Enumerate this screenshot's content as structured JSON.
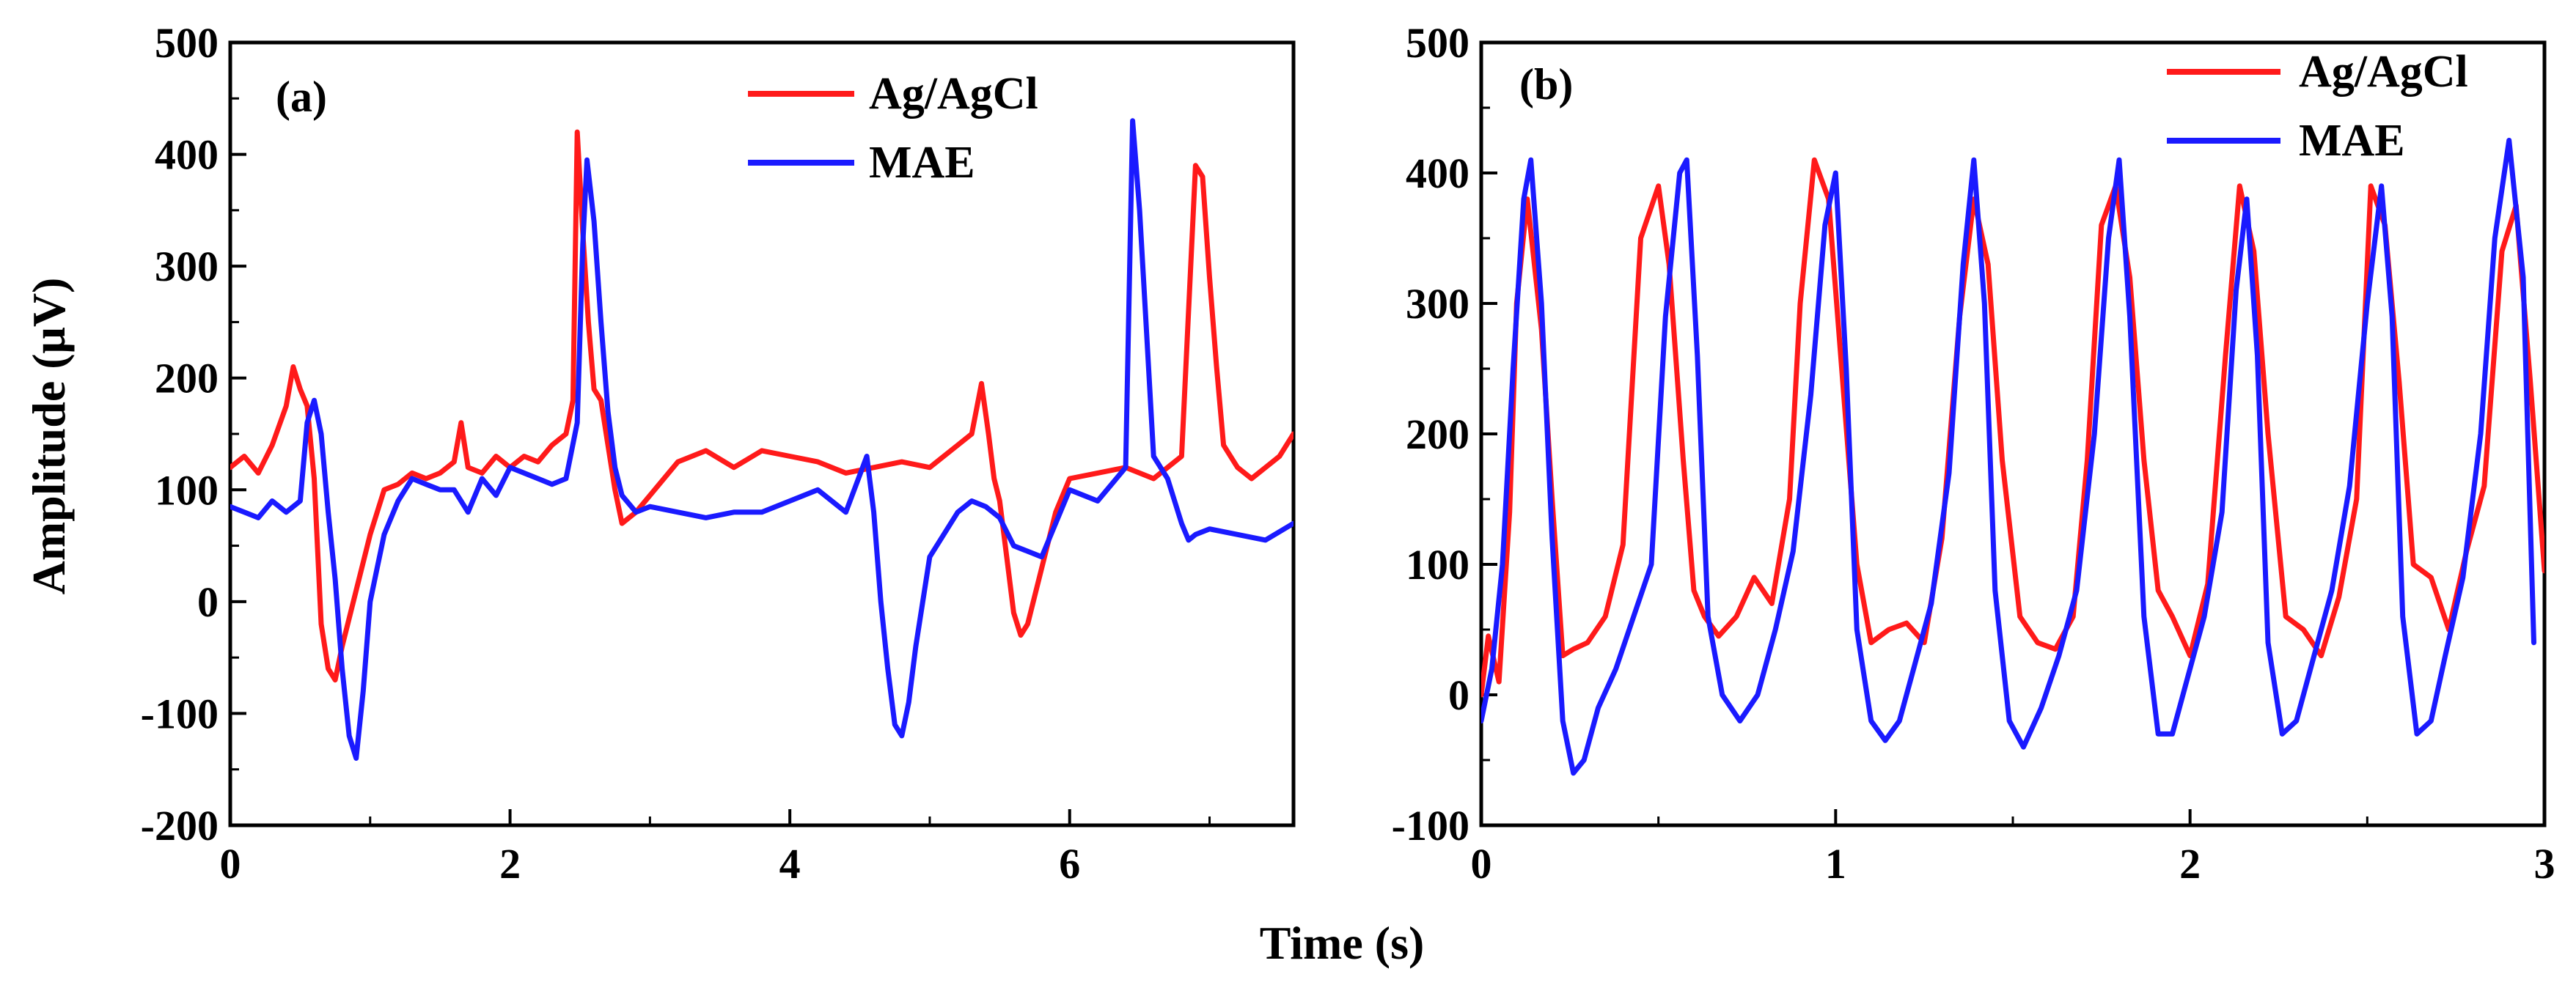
{
  "figure": {
    "shared_xlabel": "Time (s)",
    "shared_ylabel": "Amplitude (μV)"
  },
  "chart_data": [
    {
      "type": "line",
      "panel_label": "(a)",
      "xlabel": "Time (s)",
      "ylabel": "Amplitude (μV)",
      "xlim": [
        0,
        7.6
      ],
      "ylim": [
        -200,
        500
      ],
      "x_ticks": [
        "0",
        "2",
        "4",
        "6"
      ],
      "y_ticks": [
        "-200",
        "-100",
        "0",
        "100",
        "200",
        "300",
        "400",
        "500"
      ],
      "grid": false,
      "legend_position": "top-right",
      "series": [
        {
          "name": "Ag/AgCl",
          "color": "#ff1a1a",
          "x": [
            0,
            0.1,
            0.2,
            0.3,
            0.4,
            0.45,
            0.5,
            0.55,
            0.6,
            0.65,
            0.7,
            0.75,
            0.8,
            0.9,
            1.0,
            1.1,
            1.2,
            1.3,
            1.4,
            1.5,
            1.6,
            1.65,
            1.7,
            1.8,
            1.9,
            2.0,
            2.1,
            2.2,
            2.3,
            2.4,
            2.45,
            2.48,
            2.52,
            2.56,
            2.6,
            2.65,
            2.7,
            2.75,
            2.8,
            2.9,
            3.0,
            3.2,
            3.4,
            3.6,
            3.8,
            4.0,
            4.2,
            4.4,
            4.6,
            4.8,
            5.0,
            5.2,
            5.3,
            5.37,
            5.42,
            5.46,
            5.5,
            5.55,
            5.6,
            5.65,
            5.7,
            5.8,
            5.9,
            6.0,
            6.2,
            6.4,
            6.6,
            6.8,
            6.85,
            6.9,
            6.95,
            7.0,
            7.05,
            7.1,
            7.2,
            7.3,
            7.4,
            7.5,
            7.6
          ],
          "values": [
            120,
            130,
            115,
            140,
            175,
            210,
            190,
            175,
            110,
            -20,
            -60,
            -70,
            -40,
            10,
            60,
            100,
            105,
            115,
            110,
            115,
            125,
            160,
            120,
            115,
            130,
            120,
            130,
            125,
            140,
            150,
            180,
            420,
            330,
            250,
            190,
            180,
            140,
            100,
            70,
            80,
            95,
            125,
            135,
            120,
            135,
            130,
            125,
            115,
            120,
            125,
            120,
            140,
            150,
            195,
            150,
            110,
            90,
            40,
            -10,
            -30,
            -20,
            30,
            80,
            110,
            115,
            120,
            110,
            130,
            260,
            390,
            380,
            290,
            210,
            140,
            120,
            110,
            120,
            130,
            150
          ]
        },
        {
          "name": "MAE",
          "color": "#1a1aff",
          "x": [
            0,
            0.1,
            0.2,
            0.3,
            0.4,
            0.5,
            0.55,
            0.6,
            0.65,
            0.7,
            0.75,
            0.8,
            0.85,
            0.9,
            0.95,
            1.0,
            1.05,
            1.1,
            1.2,
            1.3,
            1.4,
            1.5,
            1.6,
            1.7,
            1.8,
            1.9,
            2.0,
            2.1,
            2.2,
            2.3,
            2.4,
            2.48,
            2.52,
            2.55,
            2.6,
            2.65,
            2.7,
            2.75,
            2.8,
            2.9,
            3.0,
            3.2,
            3.4,
            3.6,
            3.8,
            4.0,
            4.2,
            4.4,
            4.55,
            4.6,
            4.65,
            4.7,
            4.75,
            4.8,
            4.85,
            4.9,
            5.0,
            5.1,
            5.2,
            5.3,
            5.4,
            5.5,
            5.6,
            5.8,
            6.0,
            6.2,
            6.4,
            6.45,
            6.5,
            6.55,
            6.6,
            6.7,
            6.8,
            6.85,
            6.9,
            7.0,
            7.2,
            7.4,
            7.6
          ],
          "values": [
            85,
            80,
            75,
            90,
            80,
            90,
            160,
            180,
            150,
            80,
            20,
            -60,
            -120,
            -140,
            -80,
            0,
            30,
            60,
            90,
            110,
            105,
            100,
            100,
            80,
            110,
            95,
            120,
            115,
            110,
            105,
            110,
            160,
            320,
            395,
            340,
            250,
            170,
            120,
            95,
            80,
            85,
            80,
            75,
            80,
            80,
            90,
            100,
            80,
            130,
            80,
            0,
            -60,
            -110,
            -120,
            -90,
            -40,
            40,
            60,
            80,
            90,
            85,
            75,
            50,
            40,
            100,
            90,
            120,
            430,
            350,
            240,
            130,
            110,
            70,
            55,
            60,
            65,
            60,
            55,
            70
          ]
        }
      ]
    },
    {
      "type": "line",
      "panel_label": "(b)",
      "xlabel": "Time (s)",
      "ylabel": "",
      "xlim": [
        0,
        3
      ],
      "ylim": [
        -100,
        500
      ],
      "x_ticks": [
        "0",
        "1",
        "2",
        "3"
      ],
      "y_ticks": [
        "-100",
        "0",
        "100",
        "200",
        "300",
        "400",
        "500"
      ],
      "grid": false,
      "legend_position": "top-right",
      "series": [
        {
          "name": "Ag/AgCl",
          "color": "#ff1a1a",
          "x": [
            0,
            0.02,
            0.05,
            0.08,
            0.1,
            0.13,
            0.17,
            0.2,
            0.23,
            0.26,
            0.3,
            0.35,
            0.4,
            0.45,
            0.5,
            0.53,
            0.57,
            0.6,
            0.63,
            0.67,
            0.72,
            0.77,
            0.82,
            0.87,
            0.9,
            0.94,
            0.98,
            1.02,
            1.06,
            1.1,
            1.15,
            1.2,
            1.25,
            1.3,
            1.35,
            1.39,
            1.43,
            1.47,
            1.52,
            1.57,
            1.62,
            1.67,
            1.71,
            1.75,
            1.79,
            1.83,
            1.87,
            1.91,
            1.95,
            2.0,
            2.05,
            2.1,
            2.14,
            2.18,
            2.22,
            2.27,
            2.32,
            2.37,
            2.42,
            2.47,
            2.51,
            2.55,
            2.59,
            2.63,
            2.68,
            2.73,
            2.78,
            2.83,
            2.88,
            2.92,
            2.96,
            3.0
          ],
          "values": [
            0,
            45,
            10,
            140,
            300,
            380,
            280,
            150,
            30,
            35,
            40,
            60,
            115,
            350,
            390,
            330,
            180,
            80,
            60,
            45,
            60,
            90,
            70,
            150,
            300,
            410,
            380,
            240,
            100,
            40,
            50,
            55,
            40,
            120,
            290,
            380,
            330,
            180,
            60,
            40,
            35,
            60,
            180,
            360,
            390,
            320,
            180,
            80,
            60,
            30,
            85,
            260,
            390,
            340,
            200,
            60,
            50,
            30,
            75,
            150,
            390,
            360,
            240,
            100,
            90,
            50,
            110,
            160,
            340,
            375,
            240,
            95
          ]
        },
        {
          "name": "MAE",
          "color": "#1a1aff",
          "x": [
            0,
            0.03,
            0.06,
            0.09,
            0.12,
            0.14,
            0.17,
            0.2,
            0.23,
            0.26,
            0.29,
            0.33,
            0.38,
            0.43,
            0.48,
            0.52,
            0.56,
            0.58,
            0.61,
            0.64,
            0.68,
            0.73,
            0.78,
            0.83,
            0.88,
            0.93,
            0.97,
            1.0,
            1.03,
            1.06,
            1.1,
            1.14,
            1.18,
            1.22,
            1.27,
            1.32,
            1.36,
            1.39,
            1.42,
            1.45,
            1.49,
            1.53,
            1.58,
            1.63,
            1.68,
            1.73,
            1.77,
            1.8,
            1.83,
            1.87,
            1.91,
            1.95,
            1.99,
            2.04,
            2.09,
            2.13,
            2.16,
            2.19,
            2.22,
            2.26,
            2.3,
            2.35,
            2.4,
            2.45,
            2.5,
            2.54,
            2.57,
            2.6,
            2.64,
            2.68,
            2.72,
            2.77,
            2.82,
            2.86,
            2.9,
            2.94,
            2.97
          ],
          "values": [
            -20,
            20,
            100,
            250,
            380,
            410,
            300,
            120,
            -20,
            -60,
            -50,
            -10,
            20,
            60,
            100,
            290,
            400,
            410,
            260,
            60,
            0,
            -20,
            0,
            50,
            110,
            230,
            360,
            400,
            250,
            50,
            -20,
            -35,
            -20,
            20,
            70,
            170,
            330,
            410,
            300,
            80,
            -20,
            -40,
            -10,
            30,
            80,
            200,
            350,
            410,
            290,
            60,
            -30,
            -30,
            10,
            60,
            140,
            310,
            380,
            260,
            40,
            -30,
            -20,
            30,
            80,
            160,
            300,
            390,
            290,
            60,
            -30,
            -20,
            30,
            90,
            200,
            350,
            425,
            320,
            40
          ]
        }
      ]
    }
  ]
}
